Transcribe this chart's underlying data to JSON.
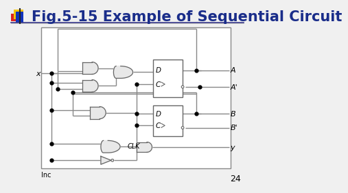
{
  "title": "Fig.5-15 Example of Sequential Circuit",
  "title_color": "#1a2d8a",
  "title_fontsize": 15,
  "bg_color": "#f0f0f0",
  "page_number": "24",
  "line_color": "#888888",
  "gate_fill": "#e8e8e8",
  "gate_edge": "#666666",
  "text_color": "#000000",
  "logo_yellow": "#f5c200",
  "logo_red": "#dd2222",
  "logo_blue": "#1133bb",
  "header_line": "#333388"
}
